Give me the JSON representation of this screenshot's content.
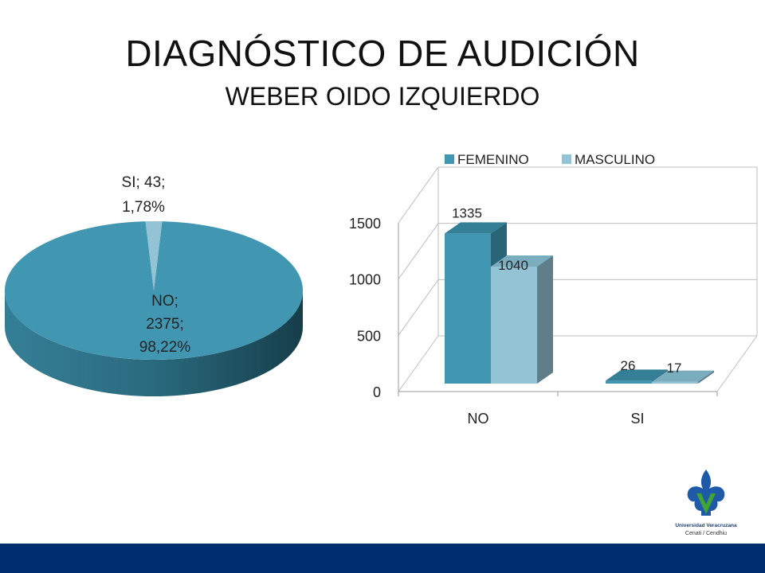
{
  "title": "DIAGNÓSTICO DE AUDICIÓN",
  "subtitle": "WEBER OIDO IZQUIERDO",
  "colors": {
    "femenino": "#4196b2",
    "masculino": "#93c3d4",
    "pie_main": "#4196b2",
    "pie_small": "#93c3d4",
    "footer": "#002d6e"
  },
  "logo": {
    "icon": "university-emblem-icon",
    "line1": "Universidad Veracruzana",
    "line2": "Cenati / Cendhiu"
  },
  "chart_data": [
    {
      "type": "pie",
      "slices": [
        {
          "label": "NO",
          "value": 2375,
          "percent": "98,22%",
          "label_lines": [
            "NO;",
            "2375;",
            "98,22%"
          ]
        },
        {
          "label": "SI",
          "value": 43,
          "percent": "1,78%",
          "label_lines": [
            "SI; 43;",
            "1,78%"
          ]
        }
      ]
    },
    {
      "type": "bar",
      "categories": [
        "NO",
        "SI"
      ],
      "series": [
        {
          "name": "FEMENINO",
          "values": [
            1335,
            26
          ]
        },
        {
          "name": "MASCULINO",
          "values": [
            1040,
            17
          ]
        }
      ],
      "yticks": [
        "0",
        "500",
        "1000",
        "1500"
      ],
      "ylim": [
        0,
        1500
      ],
      "legend": "top",
      "grid": true
    }
  ]
}
